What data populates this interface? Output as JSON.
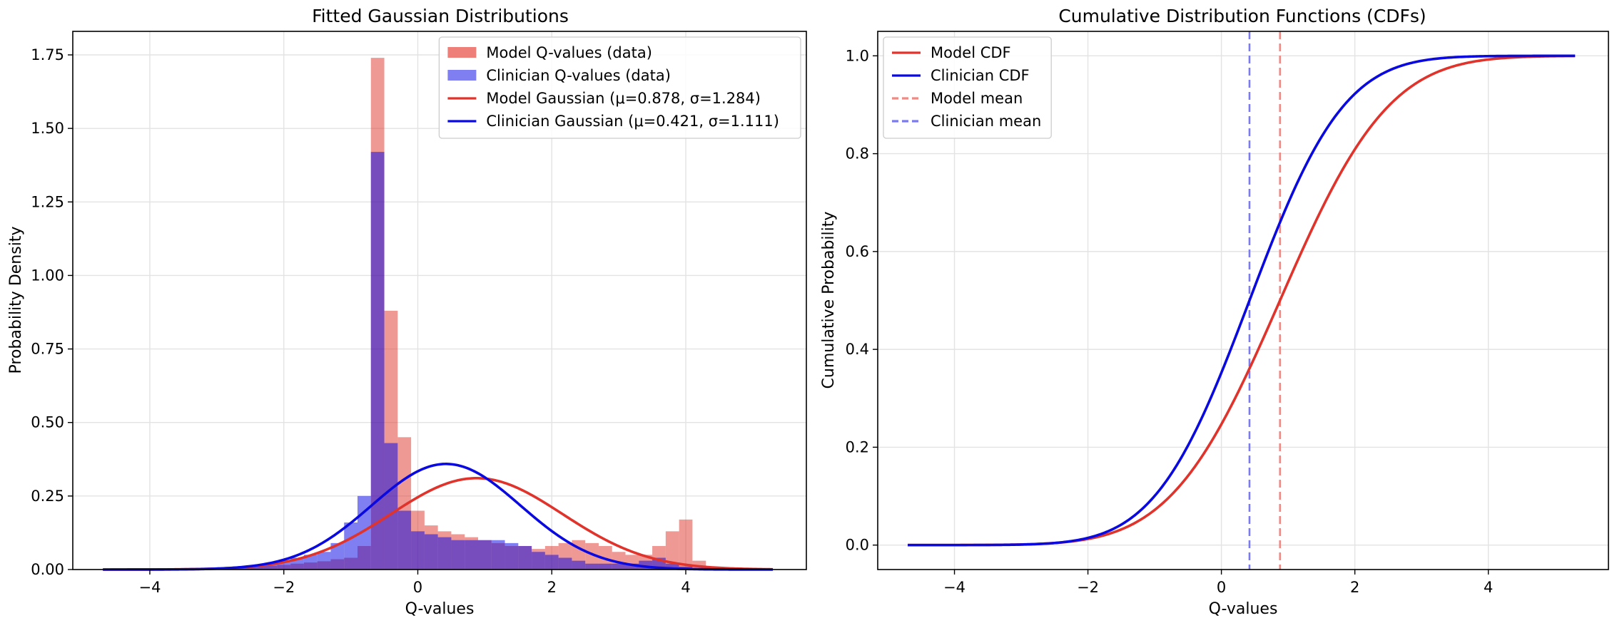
{
  "chart_data": [
    {
      "type": "histogram",
      "title": "Fitted Gaussian Distributions",
      "xlabel": "Q-values",
      "ylabel": "Probability Density",
      "xlim": [
        -5.15,
        5.8
      ],
      "ylim": [
        0,
        1.83
      ],
      "xticks": [
        -4,
        -2,
        0,
        2,
        4
      ],
      "yticks": [
        0.0,
        0.25,
        0.5,
        0.75,
        1.0,
        1.25,
        1.5,
        1.75
      ],
      "xtick_labels": [
        "−4",
        "−2",
        "0",
        "2",
        "4"
      ],
      "ytick_labels": [
        "0.00",
        "0.25",
        "0.50",
        "0.75",
        "1.00",
        "1.25",
        "1.50",
        "1.75"
      ],
      "grid": true,
      "legend_position": "top-right",
      "bins": {
        "start": -3.5,
        "width": 0.2,
        "model": [
          0.001,
          0.002,
          0.003,
          0.005,
          0.007,
          0.01,
          0.013,
          0.016,
          0.02,
          0.024,
          0.028,
          0.035,
          0.04,
          0.08,
          1.74,
          0.88,
          0.45,
          0.2,
          0.15,
          0.13,
          0.12,
          0.11,
          0.1,
          0.09,
          0.08,
          0.08,
          0.07,
          0.08,
          0.09,
          0.1,
          0.09,
          0.08,
          0.06,
          0.05,
          0.05,
          0.08,
          0.13,
          0.17,
          0.03
        ],
        "clinician": [
          0.002,
          0.003,
          0.005,
          0.008,
          0.01,
          0.015,
          0.02,
          0.03,
          0.04,
          0.05,
          0.06,
          0.09,
          0.16,
          0.25,
          1.42,
          0.43,
          0.2,
          0.13,
          0.12,
          0.11,
          0.1,
          0.1,
          0.1,
          0.1,
          0.09,
          0.08,
          0.06,
          0.05,
          0.04,
          0.03,
          0.02,
          0.02,
          0.02,
          0.02,
          0.03,
          0.04,
          0.02,
          0.01,
          0.005
        ]
      },
      "gaussians": [
        {
          "name": "Model Gaussian (μ=0.878, σ=1.284)",
          "mu": 0.878,
          "sigma": 1.284,
          "color": "#e0332b"
        },
        {
          "name": "Clinician Gaussian (μ=0.421, σ=1.111)",
          "mu": 0.421,
          "sigma": 1.111,
          "color": "#0a0ae0"
        }
      ],
      "x_range": [
        -4.7,
        5.3
      ],
      "legend": [
        {
          "label": "Model Q-values (data)",
          "kind": "patch",
          "color": "#ed7f78"
        },
        {
          "label": "Clinician Q-values (data)",
          "kind": "patch",
          "color": "#7f7ff2"
        },
        {
          "label": "Model Gaussian (μ=0.878, σ=1.284)",
          "kind": "line",
          "color": "#e0332b"
        },
        {
          "label": "Clinician Gaussian (μ=0.421, σ=1.111)",
          "kind": "line",
          "color": "#0a0ae0"
        }
      ]
    },
    {
      "type": "line",
      "title": "Cumulative Distribution Functions (CDFs)",
      "xlabel": "Q-values",
      "ylabel": "Cumulative Probability",
      "xlim": [
        -5.15,
        5.8
      ],
      "ylim": [
        -0.05,
        1.05
      ],
      "xticks": [
        -4,
        -2,
        0,
        2,
        4
      ],
      "yticks": [
        0.0,
        0.2,
        0.4,
        0.6,
        0.8,
        1.0
      ],
      "xtick_labels": [
        "−4",
        "−2",
        "0",
        "2",
        "4"
      ],
      "ytick_labels": [
        "0.0",
        "0.2",
        "0.4",
        "0.6",
        "0.8",
        "1.0"
      ],
      "grid": true,
      "legend_position": "top-left",
      "series": [
        {
          "name": "Model CDF",
          "mu": 0.878,
          "sigma": 1.284,
          "color": "#e0332b"
        },
        {
          "name": "Clinician CDF",
          "mu": 0.421,
          "sigma": 1.111,
          "color": "#0a0ae0"
        }
      ],
      "vlines": [
        {
          "name": "Model mean",
          "x": 0.878,
          "color": "#ef8a85"
        },
        {
          "name": "Clinician mean",
          "x": 0.421,
          "color": "#7b7bef"
        }
      ],
      "x_range": [
        -4.7,
        5.3
      ],
      "legend": [
        {
          "label": "Model CDF",
          "kind": "line",
          "color": "#e0332b"
        },
        {
          "label": "Clinician CDF",
          "kind": "line",
          "color": "#0a0ae0"
        },
        {
          "label": "Model mean",
          "kind": "dashed",
          "color": "#ef8a85"
        },
        {
          "label": "Clinician mean",
          "kind": "dashed",
          "color": "#7b7bef"
        }
      ]
    }
  ]
}
